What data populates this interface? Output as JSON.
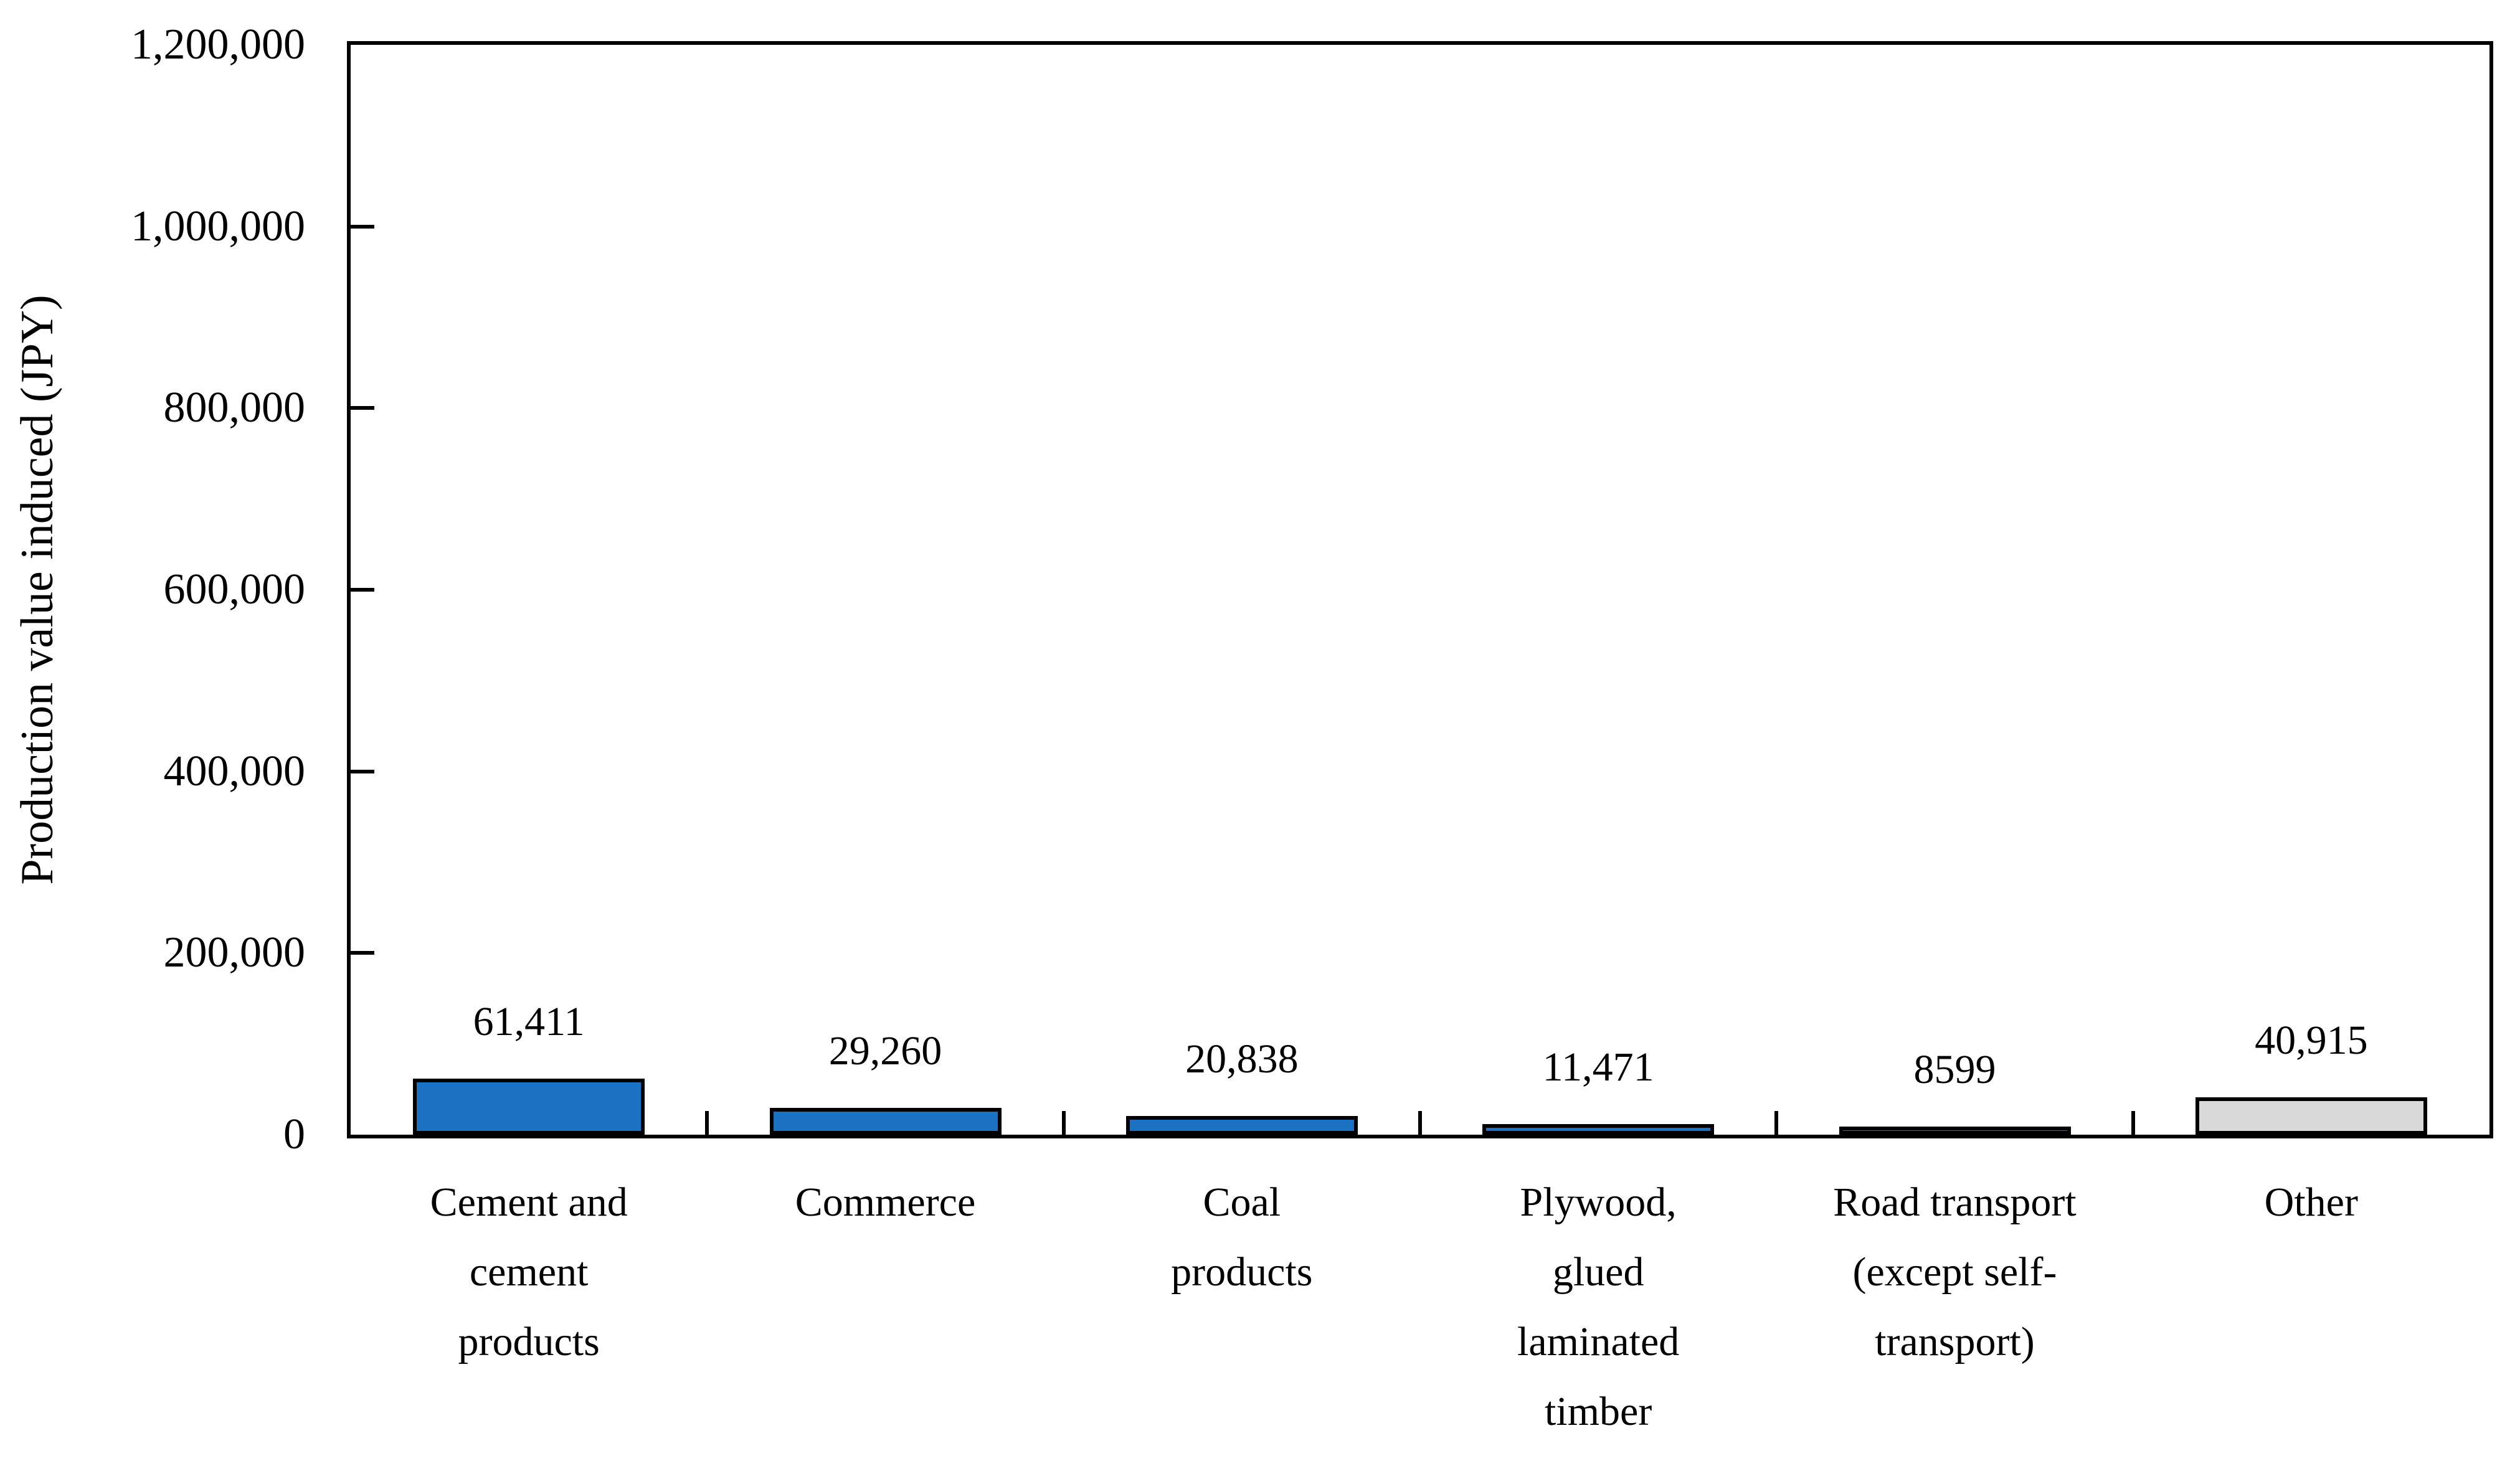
{
  "chart_data": {
    "type": "bar",
    "title": "",
    "ylabel": "Production value induced (JPY)",
    "xlabel": "",
    "ylim": [
      0,
      1200000
    ],
    "ytick_values": [
      0,
      200000,
      400000,
      600000,
      800000,
      1000000,
      1200000
    ],
    "ytick_labels": [
      "0",
      "200,000",
      "400,000",
      "600,000",
      "800,000",
      "1,000,000",
      "1,200,000"
    ],
    "grid": false,
    "legend": false,
    "categories": [
      "Cement and cement products",
      "Commerce",
      "Coal products",
      "Plywood, glued laminated timber",
      "Road transport (except self-transport)",
      "Other"
    ],
    "category_lines": [
      [
        "Cement and",
        "cement",
        "products"
      ],
      [
        "Commerce"
      ],
      [
        "Coal",
        "products"
      ],
      [
        "Plywood,",
        "glued",
        "laminated",
        "timber"
      ],
      [
        "Road transport",
        "(except self-",
        "transport)"
      ],
      [
        "Other"
      ]
    ],
    "values": [
      61411,
      29260,
      20838,
      11471,
      8599,
      40915
    ],
    "value_labels": [
      "61,411",
      "29,260",
      "20,838",
      "11,471",
      "8599",
      "40,915"
    ],
    "bar_colors": [
      "#1B72C2",
      "#1B72C2",
      "#1B72C2",
      "#1B72C2",
      "#1B72C2",
      "#D9D9D9"
    ],
    "bar_border_color": "#000000",
    "axis_color": "#000000",
    "background_color": "#FFFFFF"
  }
}
